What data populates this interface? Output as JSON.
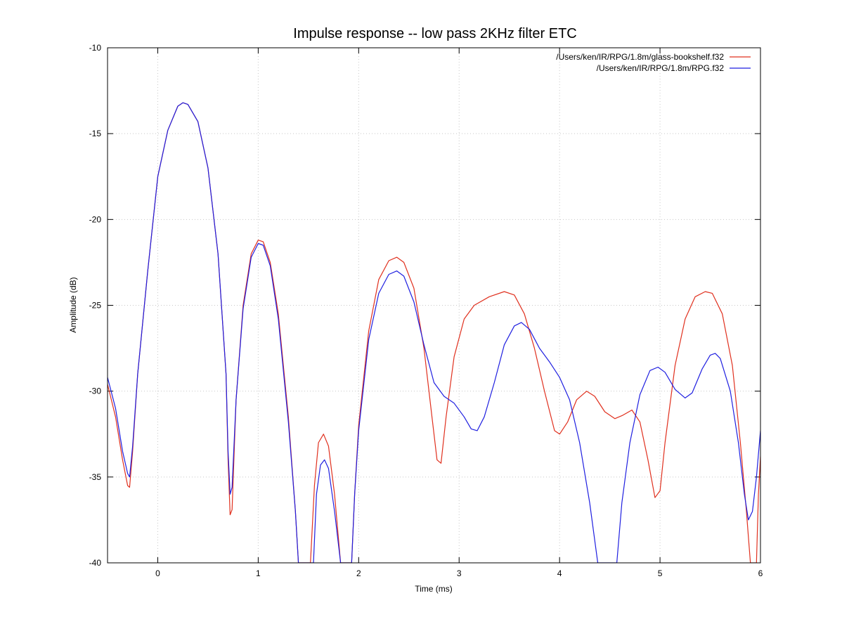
{
  "chart_data": {
    "type": "line",
    "title": "Impulse response -- low pass 2KHz filter ETC",
    "xlabel": "Time (ms)",
    "ylabel": "Amplitude (dB)",
    "xlim": [
      -0.5,
      6
    ],
    "ylim": [
      -40,
      -10
    ],
    "xticks": [
      0,
      1,
      2,
      3,
      4,
      5,
      6
    ],
    "yticks": [
      -10,
      -15,
      -20,
      -25,
      -30,
      -35,
      -40
    ],
    "grid": true,
    "legend_position": "top-right",
    "series": [
      {
        "name": "/Users/ken/IR/RPG/1.8m/glass-bookshelf.f32",
        "color": "#e0301e",
        "points": [
          [
            -0.5,
            -29.6
          ],
          [
            -0.42,
            -31.5
          ],
          [
            -0.35,
            -34.0
          ],
          [
            -0.3,
            -35.5
          ],
          [
            -0.28,
            -35.6
          ],
          [
            -0.25,
            -33.5
          ],
          [
            -0.2,
            -29.0
          ],
          [
            -0.1,
            -23.0
          ],
          [
            0.0,
            -17.5
          ],
          [
            0.1,
            -14.8
          ],
          [
            0.2,
            -13.4
          ],
          [
            0.25,
            -13.2
          ],
          [
            0.3,
            -13.3
          ],
          [
            0.4,
            -14.3
          ],
          [
            0.5,
            -17.0
          ],
          [
            0.6,
            -22.0
          ],
          [
            0.68,
            -29.0
          ],
          [
            0.7,
            -34.0
          ],
          [
            0.72,
            -37.2
          ],
          [
            0.74,
            -36.9
          ],
          [
            0.78,
            -30.5
          ],
          [
            0.85,
            -25.0
          ],
          [
            0.93,
            -22.0
          ],
          [
            1.0,
            -21.2
          ],
          [
            1.05,
            -21.3
          ],
          [
            1.12,
            -22.5
          ],
          [
            1.2,
            -25.5
          ],
          [
            1.3,
            -31.5
          ],
          [
            1.37,
            -37.0
          ],
          [
            1.4,
            -40.0
          ],
          [
            1.52,
            -40.0
          ],
          [
            1.56,
            -35.5
          ],
          [
            1.6,
            -33.0
          ],
          [
            1.65,
            -32.5
          ],
          [
            1.7,
            -33.2
          ],
          [
            1.76,
            -36.0
          ],
          [
            1.82,
            -40.0
          ],
          [
            1.93,
            -40.0
          ],
          [
            1.96,
            -36.0
          ],
          [
            2.0,
            -32.0
          ],
          [
            2.1,
            -26.5
          ],
          [
            2.2,
            -23.5
          ],
          [
            2.3,
            -22.4
          ],
          [
            2.38,
            -22.2
          ],
          [
            2.45,
            -22.5
          ],
          [
            2.55,
            -24.0
          ],
          [
            2.65,
            -27.5
          ],
          [
            2.73,
            -31.5
          ],
          [
            2.78,
            -34.0
          ],
          [
            2.82,
            -34.2
          ],
          [
            2.87,
            -31.5
          ],
          [
            2.95,
            -28.0
          ],
          [
            3.05,
            -25.8
          ],
          [
            3.15,
            -25.0
          ],
          [
            3.3,
            -24.5
          ],
          [
            3.45,
            -24.2
          ],
          [
            3.55,
            -24.4
          ],
          [
            3.65,
            -25.5
          ],
          [
            3.75,
            -27.5
          ],
          [
            3.85,
            -30.0
          ],
          [
            3.95,
            -32.3
          ],
          [
            4.0,
            -32.5
          ],
          [
            4.08,
            -31.8
          ],
          [
            4.17,
            -30.5
          ],
          [
            4.27,
            -30.0
          ],
          [
            4.35,
            -30.3
          ],
          [
            4.45,
            -31.2
          ],
          [
            4.55,
            -31.6
          ],
          [
            4.63,
            -31.4
          ],
          [
            4.72,
            -31.1
          ],
          [
            4.8,
            -31.8
          ],
          [
            4.88,
            -34.0
          ],
          [
            4.95,
            -36.2
          ],
          [
            5.0,
            -35.8
          ],
          [
            5.05,
            -33.0
          ],
          [
            5.15,
            -28.5
          ],
          [
            5.25,
            -25.8
          ],
          [
            5.35,
            -24.5
          ],
          [
            5.45,
            -24.2
          ],
          [
            5.52,
            -24.3
          ],
          [
            5.62,
            -25.5
          ],
          [
            5.72,
            -28.5
          ],
          [
            5.8,
            -33.0
          ],
          [
            5.86,
            -37.0
          ],
          [
            5.9,
            -40.0
          ],
          [
            5.96,
            -40.0
          ],
          [
            5.98,
            -36.0
          ],
          [
            6.0,
            -33.8
          ]
        ]
      },
      {
        "name": "/Users/ken/IR/RPG/1.8m/RPG.f32",
        "color": "#1f1fe0",
        "points": [
          [
            -0.5,
            -29.2
          ],
          [
            -0.42,
            -31.0
          ],
          [
            -0.35,
            -33.5
          ],
          [
            -0.3,
            -34.8
          ],
          [
            -0.28,
            -35.0
          ],
          [
            -0.25,
            -33.2
          ],
          [
            -0.2,
            -29.0
          ],
          [
            -0.1,
            -23.0
          ],
          [
            0.0,
            -17.5
          ],
          [
            0.1,
            -14.8
          ],
          [
            0.2,
            -13.4
          ],
          [
            0.25,
            -13.2
          ],
          [
            0.3,
            -13.3
          ],
          [
            0.4,
            -14.3
          ],
          [
            0.5,
            -17.0
          ],
          [
            0.6,
            -22.0
          ],
          [
            0.68,
            -29.0
          ],
          [
            0.7,
            -33.5
          ],
          [
            0.72,
            -36.0
          ],
          [
            0.74,
            -35.6
          ],
          [
            0.78,
            -30.5
          ],
          [
            0.85,
            -25.2
          ],
          [
            0.93,
            -22.2
          ],
          [
            1.0,
            -21.4
          ],
          [
            1.05,
            -21.5
          ],
          [
            1.12,
            -22.7
          ],
          [
            1.2,
            -25.8
          ],
          [
            1.3,
            -31.8
          ],
          [
            1.37,
            -37.0
          ],
          [
            1.4,
            -40.0
          ],
          [
            1.55,
            -40.0
          ],
          [
            1.58,
            -36.0
          ],
          [
            1.62,
            -34.3
          ],
          [
            1.66,
            -34.0
          ],
          [
            1.7,
            -34.5
          ],
          [
            1.76,
            -37.0
          ],
          [
            1.82,
            -40.0
          ],
          [
            1.93,
            -40.0
          ],
          [
            1.96,
            -36.0
          ],
          [
            2.0,
            -32.3
          ],
          [
            2.1,
            -27.0
          ],
          [
            2.2,
            -24.3
          ],
          [
            2.3,
            -23.2
          ],
          [
            2.38,
            -23.0
          ],
          [
            2.45,
            -23.3
          ],
          [
            2.55,
            -24.8
          ],
          [
            2.65,
            -27.3
          ],
          [
            2.75,
            -29.5
          ],
          [
            2.85,
            -30.3
          ],
          [
            2.95,
            -30.7
          ],
          [
            3.05,
            -31.5
          ],
          [
            3.12,
            -32.2
          ],
          [
            3.18,
            -32.3
          ],
          [
            3.25,
            -31.5
          ],
          [
            3.35,
            -29.5
          ],
          [
            3.45,
            -27.3
          ],
          [
            3.55,
            -26.2
          ],
          [
            3.62,
            -26.0
          ],
          [
            3.7,
            -26.4
          ],
          [
            3.8,
            -27.5
          ],
          [
            3.9,
            -28.3
          ],
          [
            4.0,
            -29.2
          ],
          [
            4.1,
            -30.5
          ],
          [
            4.2,
            -33.0
          ],
          [
            4.3,
            -36.5
          ],
          [
            4.38,
            -40.0
          ],
          [
            4.57,
            -40.0
          ],
          [
            4.62,
            -36.5
          ],
          [
            4.7,
            -33.0
          ],
          [
            4.8,
            -30.2
          ],
          [
            4.9,
            -28.8
          ],
          [
            4.98,
            -28.6
          ],
          [
            5.05,
            -28.9
          ],
          [
            5.15,
            -29.9
          ],
          [
            5.25,
            -30.4
          ],
          [
            5.32,
            -30.1
          ],
          [
            5.42,
            -28.7
          ],
          [
            5.5,
            -27.9
          ],
          [
            5.55,
            -27.8
          ],
          [
            5.6,
            -28.1
          ],
          [
            5.7,
            -30.0
          ],
          [
            5.78,
            -33.0
          ],
          [
            5.84,
            -36.0
          ],
          [
            5.88,
            -37.5
          ],
          [
            5.92,
            -37.0
          ],
          [
            5.96,
            -35.0
          ],
          [
            6.0,
            -32.3
          ]
        ]
      }
    ]
  }
}
